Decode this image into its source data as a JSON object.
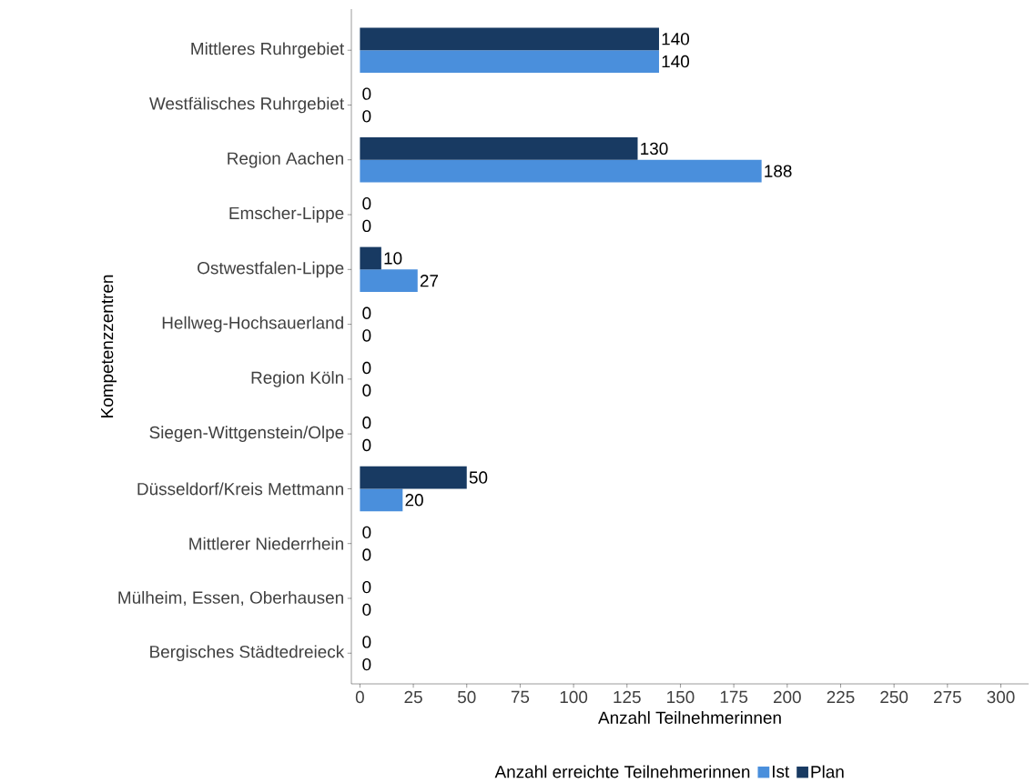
{
  "chart_data": {
    "type": "bar",
    "orientation": "horizontal",
    "xlabel": "Anzahl Teilnehmerinnen",
    "ylabel": "Kompetenzzentren",
    "legend_title": "Anzahl erreichte Teilnehmerinnen",
    "categories": [
      "Mittleres Ruhrgebiet",
      "Westfälisches Ruhrgebiet",
      "Region Aachen",
      "Emscher-Lippe",
      "Ostwestfalen-Lippe",
      "Hellweg-Hochsauerland",
      "Region Köln",
      "Siegen-Wittgenstein/Olpe",
      "Düsseldorf/Kreis Mettmann",
      "Mittlerer Niederrhein",
      "Mülheim, Essen, Oberhausen",
      "Bergisches Städtedreieck"
    ],
    "series": [
      {
        "name": "Ist",
        "color": "#4a8fdc",
        "values": [
          140,
          0,
          188,
          0,
          27,
          0,
          0,
          0,
          20,
          0,
          0,
          0
        ]
      },
      {
        "name": "Plan",
        "color": "#183a62",
        "values": [
          140,
          0,
          130,
          0,
          10,
          0,
          0,
          0,
          50,
          0,
          0,
          0
        ]
      }
    ],
    "xlim": [
      -4,
      313
    ],
    "xticks": [
      0,
      25,
      50,
      75,
      100,
      125,
      150,
      175,
      200,
      225,
      250,
      275,
      300
    ],
    "data_labels": true,
    "legend": "bottom",
    "grid": false
  }
}
